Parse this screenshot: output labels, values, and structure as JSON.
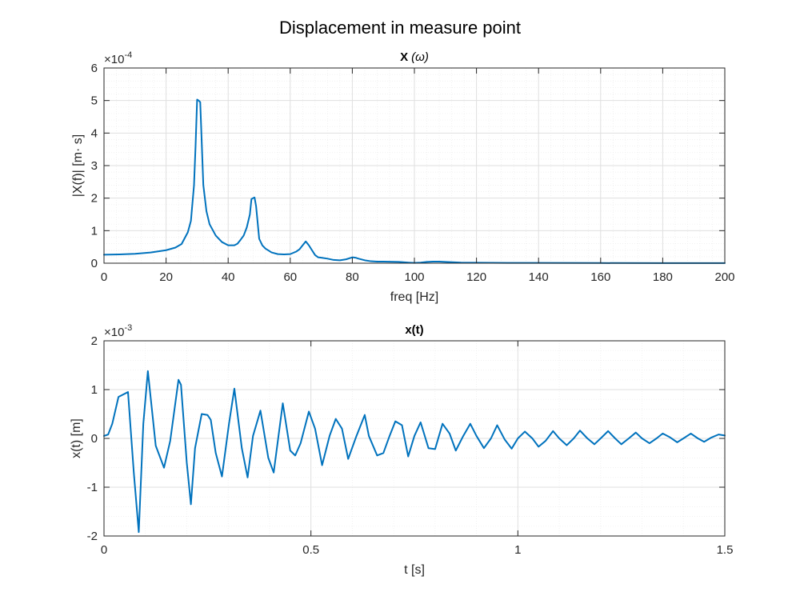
{
  "figure_title": "Displacement in measure point",
  "colors": {
    "line": "#0072BD",
    "axis": "#262626",
    "grid": "#dfdfdf",
    "minor_grid": "#ececec"
  },
  "chart_data": [
    {
      "type": "line",
      "title_bold": "X",
      "title_rest": "(ω)",
      "xlabel": "freq [Hz]",
      "ylabel": "|X(f)| [m· s]",
      "exponent": "-4",
      "xlim": [
        0,
        200
      ],
      "ylim": [
        0,
        6
      ],
      "xticks": [
        0,
        20,
        40,
        60,
        80,
        100,
        120,
        140,
        160,
        180,
        200
      ],
      "yticks": [
        0,
        1,
        2,
        3,
        4,
        5,
        6
      ],
      "grid": "major and minor",
      "series": [
        {
          "x": [
            0,
            5,
            10,
            15,
            20,
            23,
            25,
            27,
            28,
            29,
            29.5,
            30,
            30.5,
            31,
            32,
            33,
            34,
            36,
            38,
            40,
            42,
            43,
            44,
            45,
            46,
            47,
            47.5,
            48,
            48.5,
            49,
            50,
            51,
            52,
            54,
            56,
            58,
            60,
            62,
            63,
            64,
            65,
            66,
            67,
            68,
            69,
            70,
            72,
            74,
            76,
            78,
            80,
            81,
            82,
            84,
            86,
            88,
            90,
            95,
            98,
            100,
            102,
            104,
            106,
            108,
            110,
            115,
            120,
            130,
            140,
            160,
            180,
            200
          ],
          "y": [
            0.26,
            0.27,
            0.29,
            0.33,
            0.4,
            0.48,
            0.59,
            0.95,
            1.3,
            2.4,
            3.6,
            5.03,
            5.0,
            4.95,
            2.4,
            1.6,
            1.2,
            0.85,
            0.65,
            0.55,
            0.55,
            0.6,
            0.72,
            0.85,
            1.1,
            1.5,
            1.97,
            2.0,
            2.02,
            1.75,
            0.75,
            0.55,
            0.45,
            0.33,
            0.28,
            0.27,
            0.28,
            0.36,
            0.43,
            0.55,
            0.67,
            0.55,
            0.4,
            0.25,
            0.18,
            0.17,
            0.14,
            0.1,
            0.09,
            0.12,
            0.18,
            0.17,
            0.14,
            0.09,
            0.06,
            0.05,
            0.05,
            0.04,
            0.02,
            0.01,
            0.02,
            0.04,
            0.05,
            0.05,
            0.04,
            0.02,
            0.015,
            0.01,
            0.008,
            0.005,
            0.003,
            0.002
          ]
        }
      ]
    },
    {
      "type": "line",
      "title": "x(t)",
      "xlabel": "t [s]",
      "ylabel": "x(t) [m]",
      "exponent": "-3",
      "xlim": [
        0,
        1.5
      ],
      "ylim": [
        -2,
        2
      ],
      "xticks": [
        0,
        0.5,
        1,
        1.5
      ],
      "ytick_values": [
        -2,
        -1,
        0,
        1,
        2
      ],
      "ytick_labels": [
        "-2",
        "-1",
        "0",
        "1",
        "2"
      ],
      "grid": "major and minor",
      "series": [
        {
          "x": [
            0,
            0.01,
            0.02,
            0.035,
            0.058,
            0.072,
            0.084,
            0.095,
            0.106,
            0.125,
            0.145,
            0.16,
            0.18,
            0.186,
            0.2,
            0.21,
            0.22,
            0.236,
            0.25,
            0.258,
            0.27,
            0.285,
            0.302,
            0.315,
            0.333,
            0.347,
            0.36,
            0.378,
            0.397,
            0.41,
            0.432,
            0.45,
            0.462,
            0.475,
            0.495,
            0.51,
            0.527,
            0.545,
            0.56,
            0.575,
            0.59,
            0.61,
            0.63,
            0.64,
            0.66,
            0.675,
            0.69,
            0.704,
            0.72,
            0.735,
            0.75,
            0.765,
            0.784,
            0.8,
            0.818,
            0.835,
            0.85,
            0.868,
            0.885,
            0.9,
            0.918,
            0.935,
            0.95,
            0.968,
            0.985,
            1.0,
            1.017,
            1.035,
            1.05,
            1.067,
            1.085,
            1.1,
            1.118,
            1.135,
            1.15,
            1.168,
            1.185,
            1.2,
            1.218,
            1.235,
            1.25,
            1.268,
            1.285,
            1.3,
            1.318,
            1.335,
            1.35,
            1.368,
            1.385,
            1.4,
            1.418,
            1.435,
            1.45,
            1.468,
            1.485,
            1.5
          ],
          "y": [
            0.05,
            0.08,
            0.3,
            0.85,
            0.95,
            -0.7,
            -1.92,
            0.3,
            1.38,
            -0.15,
            -0.6,
            -0.05,
            1.2,
            1.1,
            -0.5,
            -1.35,
            -0.2,
            0.5,
            0.48,
            0.38,
            -0.3,
            -0.78,
            0.3,
            1.02,
            -0.2,
            -0.8,
            0.05,
            0.57,
            -0.4,
            -0.7,
            0.72,
            -0.25,
            -0.35,
            -0.1,
            0.55,
            0.2,
            -0.55,
            0.05,
            0.4,
            0.2,
            -0.42,
            0.05,
            0.48,
            0.05,
            -0.35,
            -0.3,
            0.05,
            0.35,
            0.27,
            -0.37,
            0.05,
            0.33,
            -0.2,
            -0.22,
            0.3,
            0.1,
            -0.25,
            0.05,
            0.3,
            0.05,
            -0.2,
            0.0,
            0.27,
            -0.02,
            -0.21,
            0.0,
            0.14,
            0.0,
            -0.17,
            -0.05,
            0.15,
            0.0,
            -0.14,
            0.0,
            0.16,
            0.0,
            -0.12,
            0.0,
            0.15,
            0.0,
            -0.12,
            0.0,
            0.12,
            0.0,
            -0.1,
            0.0,
            0.1,
            0.02,
            -0.08,
            0.0,
            0.1,
            0.0,
            -0.07,
            0.02,
            0.08,
            0.06
          ]
        }
      ]
    }
  ]
}
